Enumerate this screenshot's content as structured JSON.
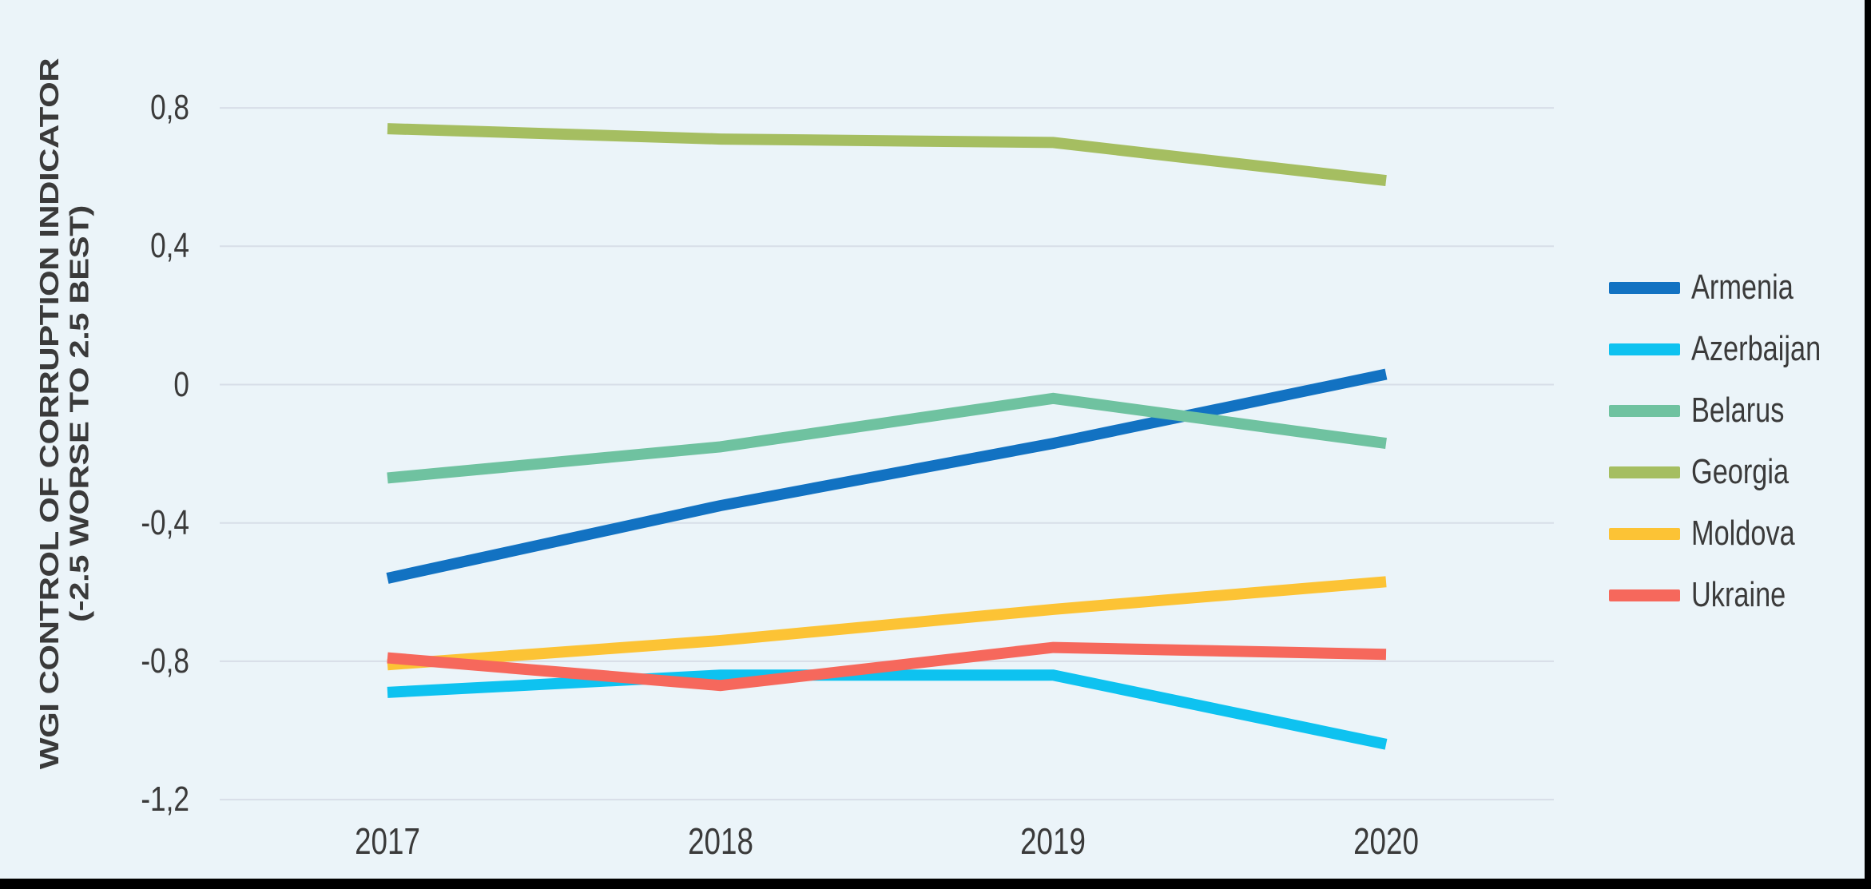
{
  "colors": {
    "background": "#EBF4F9",
    "gridline": "#D7DEE8",
    "text": "#3A3A3A",
    "frame": "#000000"
  },
  "chart_data": {
    "type": "line",
    "title": "",
    "ylabel_lines": [
      "WGI CONTROL OF CORRUPTION INDICATOR",
      "(-2.5 WORSE TO 2.5 BEST)"
    ],
    "xlabel": "",
    "x": [
      2017,
      2018,
      2019,
      2020
    ],
    "x_labels": [
      "2017",
      "2018",
      "2019",
      "2020"
    ],
    "ylim": [
      -1.2,
      0.8
    ],
    "grid": true,
    "legend_position": "right",
    "y_ticks": [
      {
        "value": 0.8,
        "label": "0,8"
      },
      {
        "value": 0.4,
        "label": "0,4"
      },
      {
        "value": 0.0,
        "label": "0"
      },
      {
        "value": -0.4,
        "label": "-0,4"
      },
      {
        "value": -0.8,
        "label": "-0,8"
      },
      {
        "value": -1.2,
        "label": "-1,2"
      }
    ],
    "series": [
      {
        "name": "Armenia",
        "color": "#1272C2",
        "values": [
          -0.56,
          -0.35,
          -0.17,
          0.03
        ]
      },
      {
        "name": "Azerbaijan",
        "color": "#0EC2F0",
        "values": [
          -0.89,
          -0.84,
          -0.84,
          -1.04
        ]
      },
      {
        "name": "Belarus",
        "color": "#6FC2A0",
        "values": [
          -0.27,
          -0.18,
          -0.04,
          -0.17
        ]
      },
      {
        "name": "Georgia",
        "color": "#A5BE61",
        "values": [
          0.74,
          0.71,
          0.7,
          0.59
        ]
      },
      {
        "name": "Moldova",
        "color": "#FCC335",
        "values": [
          -0.81,
          -0.74,
          -0.65,
          -0.57
        ]
      },
      {
        "name": "Ukraine",
        "color": "#F6685C",
        "values": [
          -0.79,
          -0.87,
          -0.76,
          -0.78
        ]
      }
    ]
  }
}
